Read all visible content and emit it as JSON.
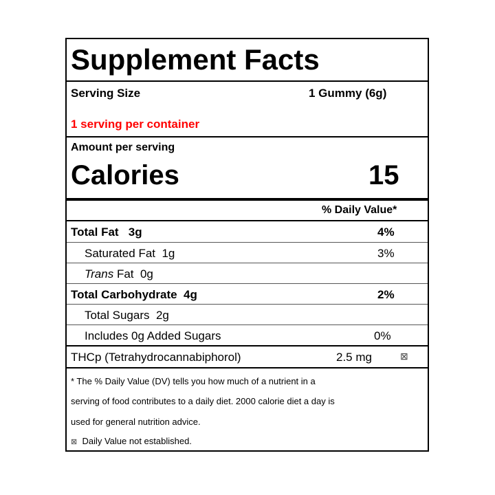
{
  "title": "Supplement Facts",
  "serving": {
    "size_label": "Serving Size",
    "size_value": "1 Gummy (6g)",
    "per_container": "1 serving per container",
    "per_container_color": "#ff0000"
  },
  "amount_label": "Amount per serving",
  "calories": {
    "label": "Calories",
    "value": "15"
  },
  "dv_header": "% Daily Value*",
  "rows": [
    {
      "name": "Total Fat",
      "amount": "3g",
      "dv": "4%"
    },
    {
      "name": "Saturated Fat",
      "amount": "1g",
      "dv": "3%"
    },
    {
      "name_italic": "Trans",
      "name": "Fat",
      "amount": "0g",
      "dv": ""
    },
    {
      "name": "Total Carbohydrate",
      "amount": "4g",
      "dv": "2%"
    },
    {
      "name": "Total Sugars",
      "amount": "2g",
      "dv": ""
    },
    {
      "name": "Includes 0g Added Sugars",
      "amount": "",
      "dv": "0%"
    },
    {
      "name": "THCp (Tetrahydrocannabiphorol)",
      "amount": "2.5 mg",
      "dv": "⊠"
    }
  ],
  "footnote": {
    "lines": [
      "* The % Daily Value (DV) tells you how much of a nutrient in a",
      "serving of food contributes to a daily diet. 2000 calorie diet a day is",
      "used for general nutrition advice."
    ],
    "symbol": "⊠",
    "symbol_text": "Daily Value not established."
  }
}
